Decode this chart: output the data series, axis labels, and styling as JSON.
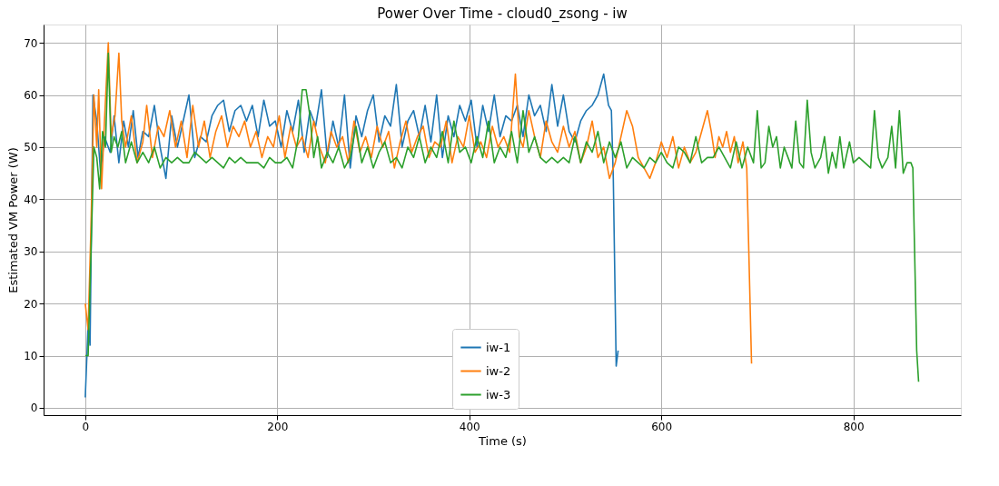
{
  "chart_data": {
    "type": "line",
    "title": "Power Over Time - cloud0_zsong - iw",
    "xlabel": "Time (s)",
    "ylabel": "Estimated VM Power (W)",
    "xlim": [
      -43.4,
      912
    ],
    "ylim": [
      -1.4,
      73.5
    ],
    "xticks": [
      0,
      200,
      400,
      600,
      800
    ],
    "yticks": [
      0,
      10,
      20,
      30,
      40,
      50,
      60,
      70
    ],
    "grid": true,
    "legend": "bottom",
    "marker": "none",
    "line_style": "solid",
    "series": [
      {
        "name": "iw-1",
        "color": "#1f77b4",
        "x": [
          0,
          3,
          5,
          8,
          12,
          16,
          20,
          26,
          30,
          35,
          40,
          45,
          50,
          55,
          60,
          66,
          72,
          78,
          84,
          90,
          96,
          102,
          108,
          114,
          120,
          126,
          132,
          138,
          144,
          150,
          156,
          162,
          168,
          174,
          180,
          186,
          192,
          198,
          204,
          210,
          216,
          222,
          228,
          234,
          240,
          246,
          252,
          258,
          264,
          270,
          276,
          282,
          288,
          294,
          300,
          306,
          312,
          318,
          324,
          330,
          336,
          342,
          348,
          354,
          360,
          366,
          372,
          378,
          384,
          390,
          396,
          402,
          408,
          414,
          420,
          426,
          432,
          438,
          444,
          450,
          456,
          462,
          468,
          474,
          480,
          486,
          492,
          498,
          504,
          510,
          516,
          522,
          528,
          534,
          540,
          545,
          548,
          550,
          553,
          555
        ],
        "values": [
          2,
          16,
          12,
          60,
          55,
          45,
          52,
          49,
          56,
          47,
          55,
          50,
          57,
          48,
          53,
          52,
          58,
          50,
          44,
          56,
          50,
          55,
          60,
          48,
          52,
          51,
          56,
          58,
          59,
          53,
          57,
          58,
          55,
          58,
          52,
          59,
          54,
          55,
          50,
          57,
          53,
          59,
          49,
          57,
          54,
          61,
          48,
          55,
          50,
          60,
          46,
          56,
          52,
          57,
          60,
          51,
          56,
          54,
          62,
          50,
          55,
          57,
          52,
          58,
          51,
          60,
          48,
          56,
          52,
          58,
          55,
          59,
          50,
          58,
          53,
          60,
          52,
          56,
          55,
          58,
          52,
          60,
          56,
          58,
          53,
          62,
          54,
          60,
          53,
          51,
          55,
          57,
          58,
          60,
          64,
          58,
          57,
          44,
          8,
          11
        ]
      },
      {
        "name": "iw-2",
        "color": "#ff7f0e",
        "x": [
          0,
          3,
          6,
          9,
          12,
          14,
          17,
          20,
          24,
          27,
          31,
          35,
          38,
          42,
          48,
          54,
          60,
          64,
          70,
          76,
          82,
          88,
          94,
          100,
          106,
          112,
          118,
          124,
          130,
          136,
          142,
          148,
          154,
          160,
          166,
          172,
          178,
          184,
          190,
          196,
          202,
          208,
          214,
          220,
          226,
          232,
          238,
          244,
          250,
          256,
          262,
          268,
          274,
          280,
          286,
          292,
          298,
          304,
          310,
          316,
          322,
          328,
          334,
          340,
          346,
          352,
          358,
          364,
          370,
          376,
          382,
          388,
          394,
          400,
          406,
          412,
          418,
          424,
          430,
          436,
          442,
          448,
          452,
          456,
          462,
          468,
          474,
          480,
          486,
          492,
          498,
          504,
          510,
          516,
          522,
          528,
          534,
          540,
          546,
          552,
          558,
          564,
          570,
          576,
          582,
          588,
          594,
          600,
          606,
          612,
          618,
          624,
          630,
          636,
          642,
          648,
          652,
          656,
          660,
          664,
          668,
          672,
          676,
          680,
          685,
          689,
          694
        ],
        "values": [
          20,
          15,
          35,
          60,
          50,
          61,
          42,
          55,
          70,
          52,
          56,
          68,
          55,
          50,
          56,
          47,
          51,
          58,
          48,
          54,
          52,
          57,
          50,
          55,
          48,
          58,
          50,
          55,
          48,
          53,
          56,
          50,
          54,
          52,
          55,
          50,
          53,
          48,
          52,
          50,
          56,
          48,
          54,
          50,
          52,
          48,
          55,
          50,
          47,
          53,
          50,
          52,
          47,
          55,
          49,
          52,
          48,
          54,
          50,
          53,
          46,
          51,
          55,
          49,
          52,
          54,
          48,
          51,
          50,
          55,
          47,
          52,
          50,
          56,
          49,
          51,
          48,
          54,
          50,
          52,
          49,
          64,
          52,
          50,
          57,
          52,
          48,
          55,
          51,
          49,
          54,
          50,
          53,
          47,
          50,
          55,
          48,
          50,
          44,
          47,
          52,
          57,
          54,
          48,
          46,
          44,
          47,
          51,
          48,
          52,
          46,
          50,
          47,
          49,
          53,
          57,
          53,
          48,
          52,
          50,
          53,
          49,
          52,
          47,
          51,
          46,
          8.5
        ]
      },
      {
        "name": "iw-3",
        "color": "#2ca02c",
        "x": [
          0,
          3,
          6,
          9,
          12,
          15,
          18,
          21,
          24,
          27,
          30,
          34,
          38,
          42,
          48,
          54,
          60,
          66,
          72,
          78,
          84,
          90,
          96,
          102,
          108,
          114,
          120,
          126,
          132,
          138,
          144,
          150,
          156,
          162,
          168,
          174,
          180,
          186,
          192,
          198,
          204,
          210,
          216,
          222,
          226,
          230,
          234,
          238,
          242,
          246,
          252,
          258,
          264,
          270,
          276,
          282,
          288,
          294,
          300,
          306,
          312,
          318,
          324,
          330,
          336,
          342,
          348,
          354,
          360,
          366,
          372,
          378,
          384,
          390,
          396,
          402,
          408,
          414,
          420,
          426,
          432,
          438,
          444,
          450,
          456,
          462,
          468,
          474,
          480,
          486,
          492,
          498,
          504,
          510,
          516,
          522,
          528,
          534,
          540,
          546,
          552,
          558,
          564,
          570,
          576,
          582,
          588,
          594,
          600,
          606,
          612,
          618,
          624,
          630,
          636,
          642,
          648,
          654,
          660,
          666,
          672,
          678,
          684,
          690,
          696,
          700,
          704,
          708,
          712,
          716,
          720,
          724,
          728,
          732,
          736,
          740,
          744,
          748,
          752,
          756,
          760,
          766,
          770,
          774,
          778,
          782,
          786,
          790,
          796,
          800,
          806,
          812,
          818,
          822,
          826,
          830,
          836,
          840,
          844,
          848,
          852,
          856,
          860,
          862,
          866,
          868
        ],
        "values": [
          10,
          10,
          30,
          50,
          48,
          42,
          53,
          50,
          68,
          49,
          52,
          50,
          53,
          47,
          51,
          47,
          49,
          47,
          50,
          46,
          48,
          47,
          48,
          47,
          47,
          49,
          48,
          47,
          48,
          47,
          46,
          48,
          47,
          48,
          47,
          47,
          47,
          46,
          48,
          47,
          47,
          48,
          46,
          52,
          61,
          61,
          56,
          48,
          52,
          46,
          49,
          47,
          50,
          46,
          48,
          54,
          47,
          50,
          46,
          49,
          51,
          47,
          48,
          46,
          50,
          48,
          52,
          47,
          50,
          48,
          53,
          47,
          55,
          49,
          50,
          47,
          52,
          48,
          55,
          47,
          50,
          48,
          53,
          47,
          57,
          49,
          52,
          48,
          47,
          48,
          47,
          48,
          47,
          52,
          47,
          51,
          49,
          53,
          47,
          51,
          48,
          51,
          46,
          48,
          47,
          46,
          48,
          47,
          49,
          47,
          46,
          50,
          49,
          47,
          52,
          47,
          48,
          48,
          50,
          48,
          46,
          51,
          46,
          50,
          47,
          57,
          46,
          47,
          54,
          50,
          52,
          46,
          50,
          48,
          46,
          55,
          47,
          46,
          59,
          49,
          46,
          48,
          52,
          45,
          49,
          46,
          52,
          46,
          51,
          47,
          48,
          47,
          46,
          57,
          48,
          46,
          48,
          54,
          46,
          57,
          45,
          47,
          47,
          46,
          11,
          5
        ]
      }
    ]
  }
}
